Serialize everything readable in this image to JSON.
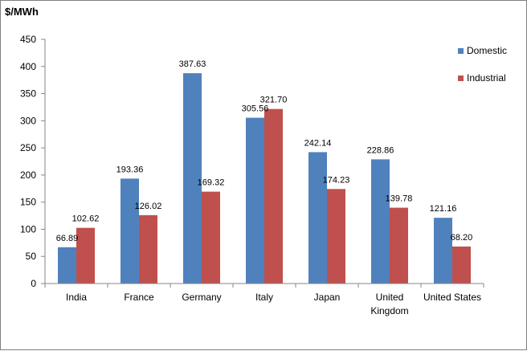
{
  "chart_data": {
    "type": "bar",
    "title": "",
    "ylabel": "$/MWh",
    "xlabel": "",
    "ylim": [
      0,
      450
    ],
    "yticks": [
      0,
      50,
      100,
      150,
      200,
      250,
      300,
      350,
      400,
      450
    ],
    "grid": false,
    "legend_position": "right",
    "categories": [
      [
        "India"
      ],
      [
        "France"
      ],
      [
        "Germany"
      ],
      [
        "Italy"
      ],
      [
        "Japan"
      ],
      [
        "United",
        "Kingdom"
      ],
      [
        "United States"
      ]
    ],
    "series": [
      {
        "name": "Domestic",
        "color": "#4f81bd",
        "values": [
          66.89,
          193.36,
          387.63,
          305.56,
          242.14,
          228.86,
          121.16
        ],
        "labels": [
          "66.89",
          "193.36",
          "387.63",
          "305.56",
          "242.14",
          "228.86",
          "121.16"
        ]
      },
      {
        "name": "Industrial",
        "color": "#c0504d",
        "values": [
          102.62,
          126.02,
          169.32,
          321.7,
          174.23,
          139.78,
          68.2
        ],
        "labels": [
          "102.62",
          "126.02",
          "169.32",
          "321.70",
          "174.23",
          "139.78",
          "68.20"
        ]
      }
    ]
  }
}
